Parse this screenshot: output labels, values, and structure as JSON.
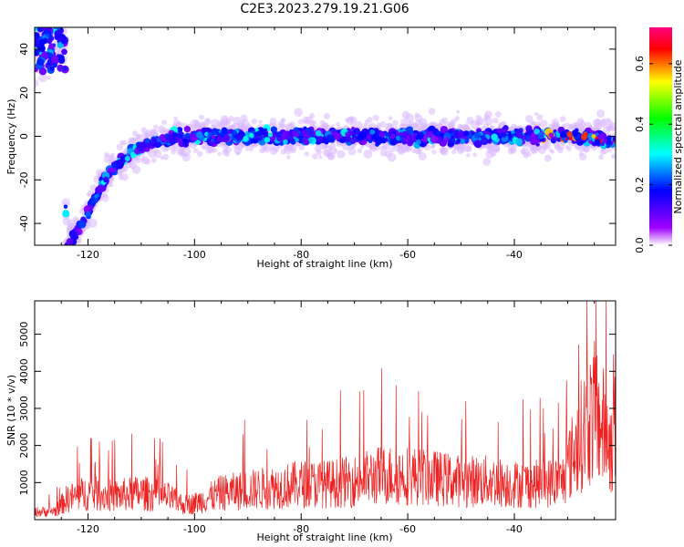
{
  "title": "C2E3.2023.279.19.21.G06",
  "chart_data": [
    {
      "type": "heatmap",
      "xlabel": "Height of straight line (km)",
      "ylabel": "Frequency (Hz)",
      "xlim": [
        -130,
        -21
      ],
      "ylim": [
        -50,
        50
      ],
      "xticks": [
        -120,
        -100,
        -80,
        -60,
        -40
      ],
      "yticks": [
        -40,
        -20,
        0,
        20,
        40
      ],
      "colorbar": {
        "label": "Normalized spectral amplitude",
        "range": [
          0.0,
          0.72
        ],
        "ticks": [
          0.0,
          0.2,
          0.4,
          0.6
        ],
        "colormap": [
          "#ffffff",
          "#a000ff",
          "#0000ff",
          "#00ffff",
          "#00ff00",
          "#ffff00",
          "#ff0000",
          "#ff0080"
        ]
      },
      "ridge": [
        {
          "x": -130,
          "y": 40
        },
        {
          "x": -127,
          "y": 45
        },
        {
          "x": -125,
          "y": 48
        },
        {
          "x": -124,
          "y": -50
        },
        {
          "x": -122,
          "y": -44
        },
        {
          "x": -120,
          "y": -35
        },
        {
          "x": -118,
          "y": -25
        },
        {
          "x": -116,
          "y": -17
        },
        {
          "x": -114,
          "y": -12
        },
        {
          "x": -112,
          "y": -8
        },
        {
          "x": -110,
          "y": -5
        },
        {
          "x": -108,
          "y": -3
        },
        {
          "x": -105,
          "y": -1
        },
        {
          "x": -100,
          "y": 0
        },
        {
          "x": -90,
          "y": 0
        },
        {
          "x": -80,
          "y": 0
        },
        {
          "x": -70,
          "y": 0
        },
        {
          "x": -60,
          "y": 0
        },
        {
          "x": -50,
          "y": 0
        },
        {
          "x": -40,
          "y": 0
        },
        {
          "x": -30,
          "y": 0
        },
        {
          "x": -21,
          "y": -2
        }
      ]
    },
    {
      "type": "line",
      "xlabel": "Height of straight line (km)",
      "ylabel": "SNR (10 * v/v)",
      "xlim": [
        -130,
        -21
      ],
      "ylim": [
        0,
        5900
      ],
      "xticks": [
        -120,
        -100,
        -80,
        -60,
        -40
      ],
      "yticks": [
        1000,
        2000,
        3000,
        4000,
        5000
      ],
      "color": "#ee2222",
      "envelope": [
        {
          "x": -130,
          "y": 250
        },
        {
          "x": -126,
          "y": 300
        },
        {
          "x": -124,
          "y": 700
        },
        {
          "x": -120,
          "y": 900
        },
        {
          "x": -115,
          "y": 800
        },
        {
          "x": -110,
          "y": 900
        },
        {
          "x": -105,
          "y": 750
        },
        {
          "x": -102,
          "y": 500
        },
        {
          "x": -100,
          "y": 550
        },
        {
          "x": -95,
          "y": 900
        },
        {
          "x": -90,
          "y": 1000
        },
        {
          "x": -85,
          "y": 1100
        },
        {
          "x": -80,
          "y": 1200
        },
        {
          "x": -75,
          "y": 1200
        },
        {
          "x": -70,
          "y": 1300
        },
        {
          "x": -65,
          "y": 1500
        },
        {
          "x": -60,
          "y": 1500
        },
        {
          "x": -55,
          "y": 1400
        },
        {
          "x": -50,
          "y": 1300
        },
        {
          "x": -45,
          "y": 1300
        },
        {
          "x": -40,
          "y": 1200
        },
        {
          "x": -35,
          "y": 1200
        },
        {
          "x": -31,
          "y": 1300
        },
        {
          "x": -29,
          "y": 2200
        },
        {
          "x": -27,
          "y": 3000
        },
        {
          "x": -25,
          "y": 3600
        },
        {
          "x": -23,
          "y": 3000
        },
        {
          "x": -21,
          "y": 2300
        }
      ]
    }
  ]
}
